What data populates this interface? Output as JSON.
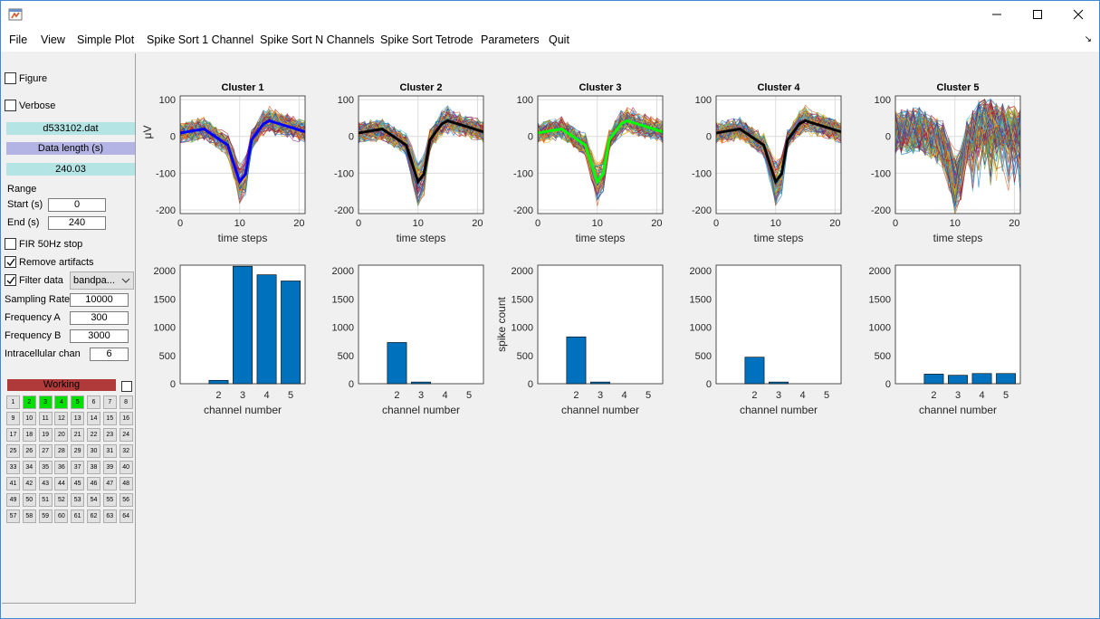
{
  "window": {
    "title": ""
  },
  "menu": [
    "File",
    "View",
    "Simple Plot",
    "Spike Sort 1 Channel",
    "Spike Sort N Channels",
    "Spike Sort Tetrode",
    "Parameters",
    "Quit"
  ],
  "panel": {
    "figure_label": "Figure",
    "verbose_label": "Verbose",
    "filename": "d533102.dat",
    "data_length_label": "Data length (s)",
    "data_length_value": "240.03",
    "range_label": "Range",
    "start_label": "Start (s)",
    "start_value": "0",
    "end_label": "End (s)",
    "end_value": "240",
    "fir_label": "FIR 50Hz stop",
    "remove_artifacts_label": "Remove artifacts",
    "filter_data_label": "Filter data",
    "filter_select_value": "bandpa...",
    "sampling_rate_label": "Sampling Rate",
    "sampling_rate_value": "10000",
    "freq_a_label": "Frequency A",
    "freq_a_value": "300",
    "freq_b_label": "Frequency B",
    "freq_b_value": "3000",
    "intracellular_label": "Intracellular chan",
    "intracellular_value": "6",
    "working_label": "Working",
    "fir_checked": false,
    "remove_artifacts_checked": true,
    "filter_data_checked": true,
    "figure_checked": false,
    "verbose_checked": false
  },
  "channels": {
    "labels": [
      "1",
      "2",
      "3",
      "4",
      "5",
      "6",
      "7",
      "8",
      "9",
      "10",
      "11",
      "12",
      "13",
      "14",
      "15",
      "16",
      "17",
      "18",
      "19",
      "20",
      "21",
      "22",
      "23",
      "24",
      "25",
      "26",
      "27",
      "28",
      "29",
      "30",
      "31",
      "32",
      "33",
      "34",
      "35",
      "36",
      "37",
      "38",
      "39",
      "40",
      "41",
      "42",
      "43",
      "44",
      "45",
      "46",
      "47",
      "48",
      "49",
      "50",
      "51",
      "52",
      "53",
      "54",
      "55",
      "56",
      "57",
      "58",
      "59",
      "60",
      "61",
      "62",
      "63",
      "64"
    ],
    "active": [
      "2",
      "3",
      "4",
      "5"
    ]
  },
  "colors": {
    "active_channel": "#00e000",
    "working": "#b03a3a",
    "bar": "#0072bd",
    "accent_panel": "#b4e4e4",
    "accent_panel2": "#b4b4e4"
  },
  "chart_data": [
    {
      "type": "line",
      "title": "Cluster 1",
      "xlabel": "time steps",
      "ylabel": "μV",
      "xlim": [
        0,
        21
      ],
      "ylim": [
        -210,
        110
      ],
      "xticks": [
        "0",
        "10",
        "20"
      ],
      "yticks": [
        "100",
        "0",
        "-100",
        "-200"
      ],
      "mean_color": "#0000ff",
      "grid": true
    },
    {
      "type": "line",
      "title": "Cluster 2",
      "xlabel": "time steps",
      "ylabel": "",
      "xlim": [
        0,
        21
      ],
      "ylim": [
        -210,
        110
      ],
      "xticks": [
        "0",
        "10",
        "20"
      ],
      "yticks": [
        "100",
        "0",
        "-100",
        "-200"
      ],
      "mean_color": "#000000",
      "grid": true
    },
    {
      "type": "line",
      "title": "Cluster 3",
      "xlabel": "time steps",
      "ylabel": "",
      "xlim": [
        0,
        21
      ],
      "ylim": [
        -210,
        110
      ],
      "xticks": [
        "0",
        "10",
        "20"
      ],
      "yticks": [
        "100",
        "0",
        "-100",
        "-200"
      ],
      "mean_color": "#00ff00",
      "grid": true
    },
    {
      "type": "line",
      "title": "Cluster 4",
      "xlabel": "time steps",
      "ylabel": "",
      "xlim": [
        0,
        21
      ],
      "ylim": [
        -210,
        110
      ],
      "xticks": [
        "0",
        "10",
        "20"
      ],
      "yticks": [
        "100",
        "0",
        "-100",
        "-200"
      ],
      "mean_color": "#000000",
      "grid": true
    },
    {
      "type": "line",
      "title": "Cluster 5",
      "xlabel": "time steps",
      "ylabel": "",
      "xlim": [
        0,
        21
      ],
      "ylim": [
        -210,
        110
      ],
      "xticks": [
        "0",
        "10",
        "20"
      ],
      "yticks": [
        "100",
        "0",
        "-100",
        "-200"
      ],
      "mean_color": "",
      "grid": true
    },
    {
      "type": "bar",
      "xlabel": "channel number",
      "ylabel": "",
      "categories": [
        "2",
        "3",
        "4",
        "5"
      ],
      "values": [
        60,
        2080,
        1930,
        1820
      ],
      "ylim": [
        0,
        2100
      ],
      "yticks": [
        "2000",
        "1500",
        "1000",
        "500",
        "0"
      ]
    },
    {
      "type": "bar",
      "xlabel": "channel number",
      "ylabel": "",
      "categories": [
        "2",
        "3",
        "4",
        "5"
      ],
      "values": [
        730,
        30,
        0,
        0
      ],
      "ylim": [
        0,
        2100
      ],
      "yticks": [
        "2000",
        "1500",
        "1000",
        "500",
        "0"
      ]
    },
    {
      "type": "bar",
      "xlabel": "channel number",
      "ylabel": "spike count",
      "categories": [
        "2",
        "3",
        "4",
        "5"
      ],
      "values": [
        830,
        30,
        0,
        0
      ],
      "ylim": [
        0,
        2100
      ],
      "yticks": [
        "2000",
        "1500",
        "1000",
        "500",
        "0"
      ]
    },
    {
      "type": "bar",
      "xlabel": "channel number",
      "ylabel": "",
      "categories": [
        "2",
        "3",
        "4",
        "5"
      ],
      "values": [
        470,
        30,
        0,
        0
      ],
      "ylim": [
        0,
        2100
      ],
      "yticks": [
        "2000",
        "1500",
        "1000",
        "500",
        "0"
      ]
    },
    {
      "type": "bar",
      "xlabel": "channel number",
      "ylabel": "",
      "categories": [
        "2",
        "3",
        "4",
        "5"
      ],
      "values": [
        170,
        150,
        180,
        180
      ],
      "ylim": [
        0,
        2100
      ],
      "yticks": [
        "2000",
        "1500",
        "1000",
        "500",
        "0"
      ]
    }
  ]
}
